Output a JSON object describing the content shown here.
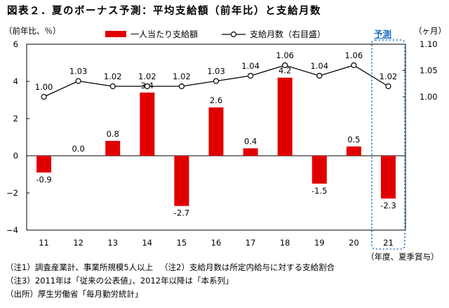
{
  "title": "図表２．夏のボーナス予測：平均支給額（前年比）と支給月数",
  "unit_left": "（前年比、％）",
  "unit_right": "（ヶ月）",
  "forecast_label": "予測",
  "year_axis_label": "（年度、夏季賞与）",
  "colors": {
    "bar": "#e00000",
    "line": "#000000",
    "forecast_box": "#1f6fc4"
  },
  "chart_data": {
    "type": "bar",
    "categories": [
      "11",
      "12",
      "13",
      "14",
      "15",
      "16",
      "17",
      "18",
      "19",
      "20",
      "21"
    ],
    "series": [
      {
        "name": "一人当たり支給額",
        "type": "bar",
        "axis": "left",
        "values": [
          -0.9,
          0.0,
          0.8,
          3.4,
          -2.7,
          2.6,
          0.4,
          4.2,
          -1.5,
          0.5,
          -2.3
        ],
        "labels": [
          "-0.9",
          "0.0",
          "0.8",
          "3.4",
          "-2.7",
          "2.6",
          "0.4",
          "4.2",
          "-1.5",
          "0.5",
          "-2.3"
        ]
      },
      {
        "name": "支給月数（右目盛）",
        "type": "line",
        "axis": "right",
        "values": [
          1.0,
          1.03,
          1.02,
          1.02,
          1.02,
          1.03,
          1.04,
          1.06,
          1.04,
          1.06,
          1.02
        ],
        "labels": [
          "1.00",
          "1.03",
          "1.02",
          "1.02",
          "1.02",
          "1.03",
          "1.04",
          "1.06",
          "1.04",
          "1.06",
          "1.02"
        ]
      }
    ],
    "y_left": {
      "ticks": [
        "6",
        "4",
        "2",
        "0",
        "−2",
        "−4"
      ],
      "tick_values": [
        6,
        4,
        2,
        0,
        -2,
        -4
      ],
      "range": [
        -4,
        6
      ]
    },
    "y_right": {
      "ticks": [
        "1.10",
        "1.05",
        "1.00"
      ],
      "tick_values": [
        1.1,
        1.05,
        1.0
      ],
      "range": [
        1.0,
        1.1
      ]
    },
    "forecast_categories": [
      "21"
    ],
    "legend_position": "top",
    "grid": false
  },
  "notes": [
    [
      "（注1）調査産業計、事業所規模5人以上",
      "（注2）支給月数は所定内給与に対する支給割合"
    ],
    [
      "（注3）2011年は「従来の公表値」、2012年以降は「本系列」"
    ],
    [
      "（出所）厚生労働省「毎月勤労統計」"
    ]
  ]
}
